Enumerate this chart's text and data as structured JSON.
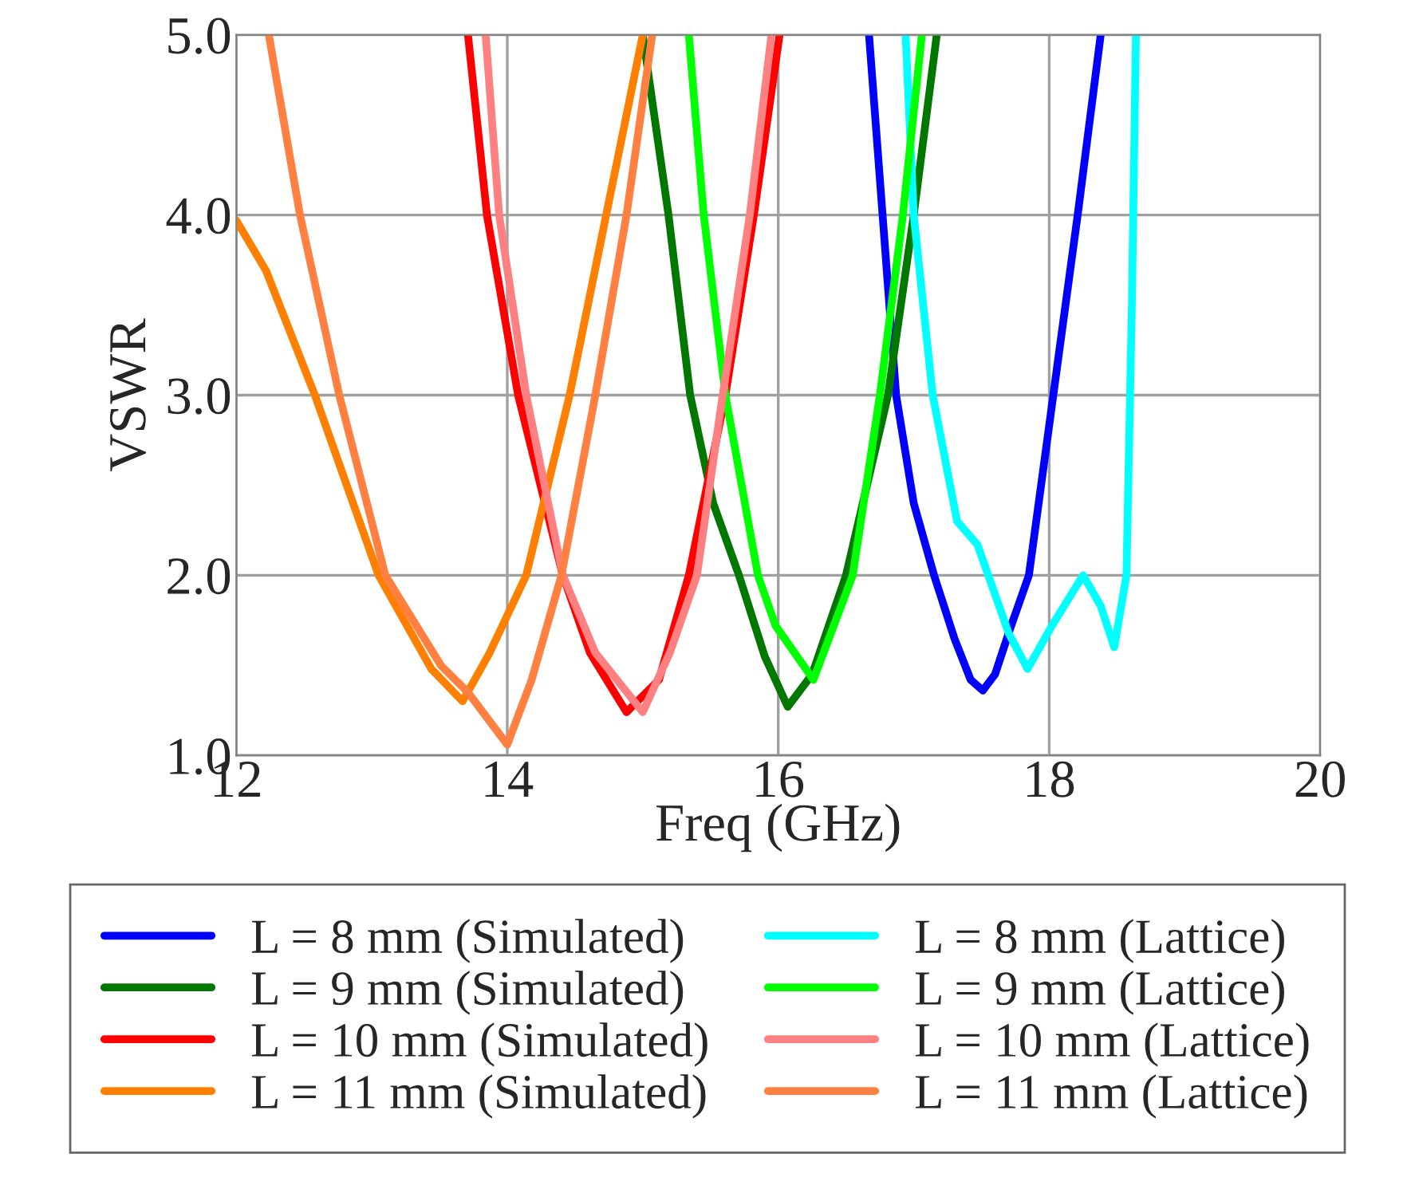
{
  "chart_data": {
    "type": "line",
    "xlabel": "Freq (GHz)",
    "ylabel": "VSWR",
    "xlim": [
      12,
      20
    ],
    "xticks": [
      12,
      14,
      16,
      18,
      20
    ],
    "ylim": [
      1.0,
      5.0
    ],
    "yticks": [
      {
        "value": 1.0,
        "label": "1.0"
      },
      {
        "value": 2.0,
        "label": "2.0"
      },
      {
        "value": 3.0,
        "label": "3.0"
      },
      {
        "value": 4.0,
        "label": "4.0"
      },
      {
        "value": 5.0,
        "label": "5.0"
      }
    ],
    "grid": true,
    "legend": "bottom",
    "line_style": "solid",
    "marker": "none",
    "series": [
      {
        "name": "L = 8 mm (Simulated)",
        "color": "#0000ff",
        "x": [
          16.67,
          16.77,
          16.87,
          17.0,
          17.15,
          17.3,
          17.42,
          17.51,
          17.6,
          17.71,
          17.85,
          18.03,
          18.21,
          18.38
        ],
        "values": [
          5.0,
          4.0,
          3.0,
          2.4,
          2.0,
          1.65,
          1.42,
          1.36,
          1.45,
          1.7,
          2.0,
          3.0,
          4.0,
          5.0
        ]
      },
      {
        "name": "L = 9 mm (Simulated)",
        "color": "#007800",
        "x": [
          15.0,
          15.19,
          15.35,
          15.52,
          15.71,
          15.9,
          16.07,
          16.25,
          16.5,
          16.81,
          17.0,
          17.17
        ],
        "values": [
          5.0,
          4.0,
          3.0,
          2.4,
          2.0,
          1.55,
          1.27,
          1.45,
          2.0,
          3.0,
          4.0,
          5.0
        ]
      },
      {
        "name": "L = 10 mm (Simulated)",
        "color": "#ff0000",
        "x": [
          13.71,
          13.85,
          14.08,
          14.41,
          14.61,
          14.88,
          15.12,
          15.34,
          15.61,
          15.82,
          16.01
        ],
        "values": [
          5.0,
          4.0,
          3.0,
          2.0,
          1.57,
          1.24,
          1.42,
          2.0,
          3.0,
          4.0,
          5.0
        ]
      },
      {
        "name": "L = 11 mm (Simulated)",
        "color": "#ff8000",
        "x": [
          12.0,
          12.22,
          12.58,
          13.05,
          13.44,
          13.67,
          13.87,
          14.14,
          14.46,
          14.73,
          15.0
        ],
        "values": [
          3.97,
          3.69,
          3.0,
          2.0,
          1.48,
          1.3,
          1.57,
          2.0,
          3.0,
          4.0,
          5.0
        ]
      },
      {
        "name": "L = 8 mm (Lattice)",
        "color": "#00ffff",
        "x": [
          16.94,
          17.0,
          17.14,
          17.32,
          17.47,
          17.55,
          17.7,
          17.84,
          18.02,
          18.25,
          18.38,
          18.48,
          18.57,
          18.61,
          18.64
        ],
        "values": [
          5.0,
          4.0,
          3.0,
          2.3,
          2.17,
          2.0,
          1.68,
          1.48,
          1.72,
          2.0,
          1.83,
          1.6,
          2.0,
          3.5,
          5.0
        ]
      },
      {
        "name": "L = 9 mm (Lattice)",
        "color": "#00ff00",
        "x": [
          15.34,
          15.45,
          15.61,
          15.85,
          15.98,
          16.26,
          16.55,
          16.75,
          16.92,
          17.06
        ],
        "values": [
          5.0,
          4.0,
          3.0,
          2.0,
          1.72,
          1.42,
          2.0,
          3.0,
          4.0,
          5.0
        ]
      },
      {
        "name": "L = 10 mm (Lattice)",
        "color": "#ff8080",
        "x": [
          13.84,
          13.94,
          14.14,
          14.41,
          14.65,
          15.0,
          15.2,
          15.4,
          15.59,
          15.79,
          15.95
        ],
        "values": [
          5.0,
          4.0,
          3.0,
          2.0,
          1.57,
          1.24,
          1.57,
          2.0,
          3.0,
          4.0,
          5.0
        ]
      },
      {
        "name": "L = 11 mm (Lattice)",
        "color": "#ff8040",
        "x": [
          12.24,
          12.47,
          12.76,
          13.1,
          13.51,
          13.71,
          14.0,
          14.18,
          14.4,
          14.65,
          14.88,
          15.07
        ],
        "values": [
          5.0,
          4.0,
          3.0,
          2.0,
          1.5,
          1.35,
          1.06,
          1.42,
          2.0,
          3.0,
          4.0,
          5.0
        ]
      }
    ]
  }
}
